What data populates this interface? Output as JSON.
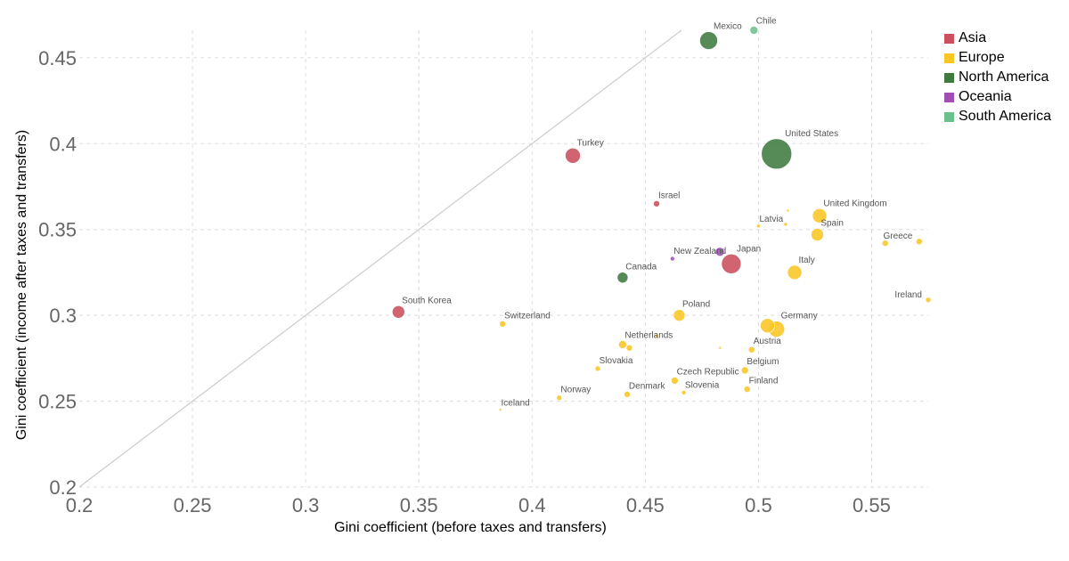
{
  "chart_data": {
    "type": "scatter",
    "xlabel": "Gini coefficient (before taxes and transfers)",
    "ylabel": "Gini coefficient (income after taxes and transfers)",
    "xlim": [
      0.2,
      0.575
    ],
    "ylim": [
      0.2,
      0.466
    ],
    "x_ticks": [
      "0.2",
      "0.25",
      "0.3",
      "0.35",
      "0.4",
      "0.45",
      "0.5",
      "0.55"
    ],
    "y_ticks": [
      "0.2",
      "0.25",
      "0.3",
      "0.35",
      "0.4",
      "0.45"
    ],
    "grid": true,
    "legend_position": "top-right",
    "reference_line": "y = x",
    "bubble_size": "population",
    "regions": [
      {
        "name": "Asia",
        "color": "#cc4f5e"
      },
      {
        "name": "Europe",
        "color": "#f9c623"
      },
      {
        "name": "North America",
        "color": "#3f7a3f"
      },
      {
        "name": "Oceania",
        "color": "#a14fb5"
      },
      {
        "name": "South America",
        "color": "#6cc08c"
      }
    ],
    "points": [
      {
        "label": "Mexico",
        "region": "North America",
        "x": 0.478,
        "y": 0.46,
        "size": 10
      },
      {
        "label": "Chile",
        "region": "South America",
        "x": 0.498,
        "y": 0.466,
        "size": 4.5
      },
      {
        "label": "United States",
        "region": "North America",
        "x": 0.508,
        "y": 0.394,
        "size": 17
      },
      {
        "label": "Turkey",
        "region": "Asia",
        "x": 0.418,
        "y": 0.393,
        "size": 8.5
      },
      {
        "label": "Israel",
        "region": "Asia",
        "x": 0.455,
        "y": 0.365,
        "size": 3.5
      },
      {
        "label": "Japan",
        "region": "Asia",
        "x": 0.488,
        "y": 0.33,
        "size": 11
      },
      {
        "label": "South Korea",
        "region": "Asia",
        "x": 0.341,
        "y": 0.302,
        "size": 7
      },
      {
        "label": "Canada",
        "region": "North America",
        "x": 0.44,
        "y": 0.322,
        "size": 6
      },
      {
        "label": "New Zealand",
        "region": "Oceania",
        "x": 0.462,
        "y": 0.333,
        "size": 2.5
      },
      {
        "label": "",
        "region": "Oceania",
        "x": 0.483,
        "y": 0.337,
        "size": 5
      },
      {
        "label": "United Kingdom",
        "region": "Europe",
        "x": 0.527,
        "y": 0.358,
        "size": 8
      },
      {
        "label": "Latvia",
        "region": "Europe",
        "x": 0.5,
        "y": 0.352,
        "size": 2
      },
      {
        "label": "",
        "region": "Europe",
        "x": 0.513,
        "y": 0.361,
        "size": 1.5
      },
      {
        "label": "",
        "region": "Europe",
        "x": 0.512,
        "y": 0.353,
        "size": 2
      },
      {
        "label": "Spain",
        "region": "Europe",
        "x": 0.526,
        "y": 0.347,
        "size": 7
      },
      {
        "label": "Greece",
        "region": "Europe",
        "x": 0.571,
        "y": 0.343,
        "size": 3.5
      },
      {
        "label": "",
        "region": "Europe",
        "x": 0.556,
        "y": 0.342,
        "size": 3.5
      },
      {
        "label": "Italy",
        "region": "Europe",
        "x": 0.516,
        "y": 0.325,
        "size": 8
      },
      {
        "label": "Ireland",
        "region": "Europe",
        "x": 0.575,
        "y": 0.309,
        "size": 3
      },
      {
        "label": "Poland",
        "region": "Europe",
        "x": 0.465,
        "y": 0.3,
        "size": 6.5
      },
      {
        "label": "Germany",
        "region": "Europe",
        "x": 0.508,
        "y": 0.292,
        "size": 9
      },
      {
        "label": "",
        "region": "Europe",
        "x": 0.504,
        "y": 0.294,
        "size": 8
      },
      {
        "label": "Switzerland",
        "region": "Europe",
        "x": 0.387,
        "y": 0.295,
        "size": 3.5
      },
      {
        "label": "Netherlands",
        "region": "Europe",
        "x": 0.44,
        "y": 0.283,
        "size": 4.5
      },
      {
        "label": "",
        "region": "Europe",
        "x": 0.443,
        "y": 0.281,
        "size": 3.5
      },
      {
        "label": "",
        "region": "Europe",
        "x": 0.455,
        "y": 0.288,
        "size": 2
      },
      {
        "label": "Austria",
        "region": "Europe",
        "x": 0.497,
        "y": 0.28,
        "size": 3.5
      },
      {
        "label": "",
        "region": "Europe",
        "x": 0.483,
        "y": 0.281,
        "size": 1.5
      },
      {
        "label": "Slovakia",
        "region": "Europe",
        "x": 0.429,
        "y": 0.269,
        "size": 3
      },
      {
        "label": "Belgium",
        "region": "Europe",
        "x": 0.494,
        "y": 0.268,
        "size": 4
      },
      {
        "label": "Czech Republic",
        "region": "Europe",
        "x": 0.463,
        "y": 0.262,
        "size": 4
      },
      {
        "label": "Slovenia",
        "region": "Europe",
        "x": 0.467,
        "y": 0.255,
        "size": 2.5
      },
      {
        "label": "Finland",
        "region": "Europe",
        "x": 0.495,
        "y": 0.257,
        "size": 3.5
      },
      {
        "label": "Denmark",
        "region": "Europe",
        "x": 0.442,
        "y": 0.254,
        "size": 3.5
      },
      {
        "label": "Norway",
        "region": "Europe",
        "x": 0.412,
        "y": 0.252,
        "size": 3
      },
      {
        "label": "Iceland",
        "region": "Europe",
        "x": 0.386,
        "y": 0.245,
        "size": 1.5
      }
    ]
  }
}
